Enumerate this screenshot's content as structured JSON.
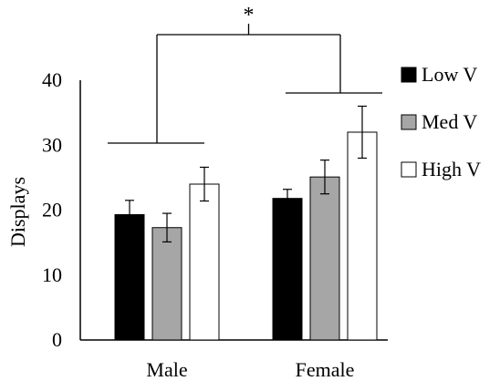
{
  "chart_data": {
    "type": "bar",
    "title": "",
    "xlabel": "",
    "ylabel": "Displays",
    "ylim": [
      0,
      40
    ],
    "yticks": [
      0,
      10,
      20,
      30,
      40
    ],
    "categories": [
      "Male",
      "Female"
    ],
    "series": [
      {
        "name": "Low V",
        "values": [
          19.3,
          21.8
        ],
        "errors": [
          2.2,
          1.4
        ],
        "color": "#000000"
      },
      {
        "name": "Med V",
        "values": [
          17.3,
          25.1
        ],
        "errors": [
          2.2,
          2.6
        ],
        "color": "#a6a6a6"
      },
      {
        "name": "High V",
        "values": [
          24.0,
          32.0
        ],
        "errors": [
          2.6,
          4.0
        ],
        "color": "#ffffff"
      }
    ],
    "legend_position": "right",
    "grid": false,
    "significance": {
      "label": "*",
      "between": [
        "Male",
        "Female"
      ]
    }
  }
}
